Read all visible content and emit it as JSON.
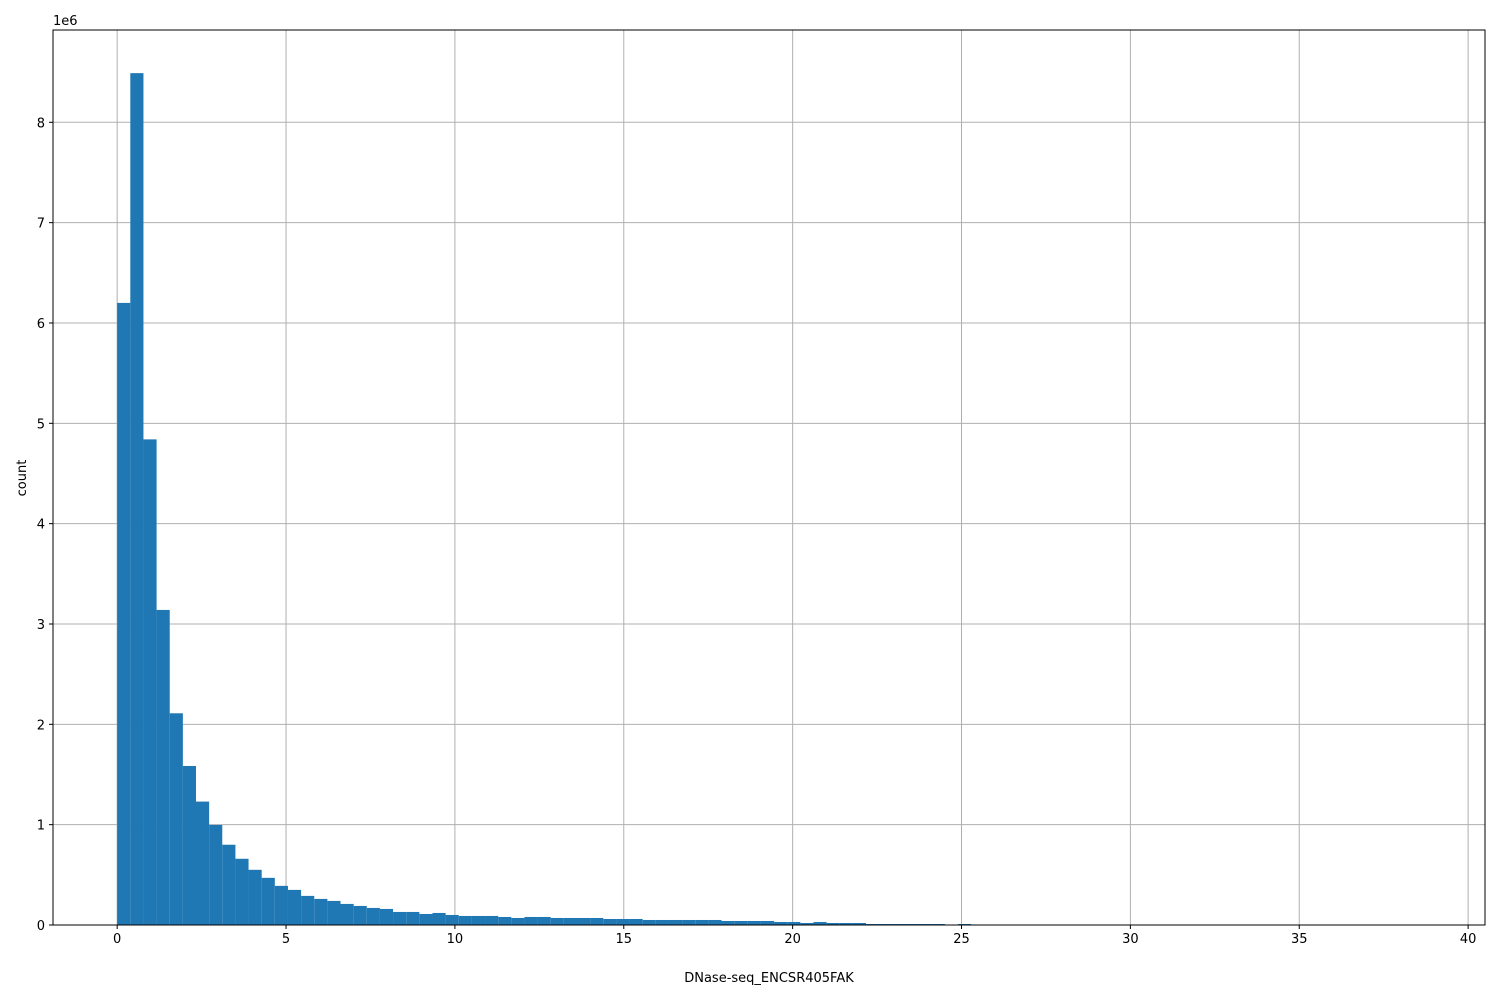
{
  "chart_data": {
    "type": "bar",
    "subtype": "histogram",
    "title": "",
    "xlabel": "DNase-seq_ENCSR405FAK",
    "ylabel": "count",
    "y_offset_label": "1e6",
    "xlim": [
      -1.9,
      40.5
    ],
    "ylim": [
      0,
      8920000
    ],
    "grid": true,
    "bar_color": "#1f77b4",
    "grid_color": "#b0b0b0",
    "bin_start": 0,
    "bin_width": 0.389,
    "x_ticks": [
      0,
      5,
      10,
      15,
      20,
      25,
      30,
      35,
      40
    ],
    "x_tick_labels": [
      "0",
      "5",
      "10",
      "15",
      "20",
      "25",
      "30",
      "35",
      "40"
    ],
    "y_ticks": [
      0,
      1000000,
      2000000,
      3000000,
      4000000,
      5000000,
      6000000,
      7000000,
      8000000
    ],
    "y_tick_labels": [
      "0",
      "1",
      "2",
      "3",
      "4",
      "5",
      "6",
      "7",
      "8"
    ],
    "values": [
      6200000,
      8490000,
      4840000,
      3140000,
      2110000,
      1585000,
      1230000,
      997000,
      800000,
      660000,
      550000,
      470000,
      390000,
      350000,
      290000,
      260000,
      240000,
      210000,
      190000,
      170000,
      160000,
      130000,
      130000,
      110000,
      120000,
      100000,
      90000,
      90000,
      90000,
      80000,
      70000,
      80000,
      80000,
      70000,
      70000,
      70000,
      70000,
      60000,
      60000,
      60000,
      50000,
      50000,
      50000,
      50000,
      50000,
      50000,
      40000,
      40000,
      40000,
      40000,
      30000,
      30000,
      20000,
      30000,
      20000,
      20000,
      20000,
      10000,
      10000,
      10000,
      10000,
      10000,
      10000,
      0,
      10000,
      0,
      0,
      0,
      0,
      0,
      0,
      0,
      0,
      0,
      0,
      0,
      0,
      0,
      0,
      0,
      0,
      0,
      0,
      0,
      0,
      0,
      0,
      0,
      0,
      0,
      0,
      0,
      0,
      0,
      0,
      0,
      0,
      0,
      0,
      0
    ]
  }
}
